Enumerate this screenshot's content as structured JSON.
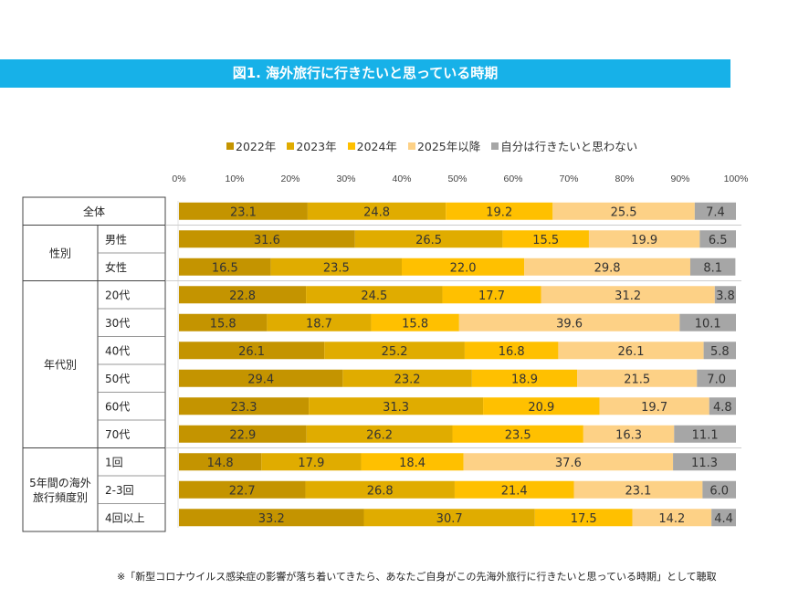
{
  "title": "図1. 海外旅行に行きたいと思っている時期",
  "footnote": "※「新型コロナウイルス感染症の影響が落ち着いてきたら、あなたご自身がこの先海外旅行に行きたいと思っている時期」として聴取",
  "chart_data": {
    "type": "bar",
    "orientation": "horizontal",
    "stacked": true,
    "xlim": [
      0,
      100
    ],
    "x_ticks": [
      "0%",
      "10%",
      "20%",
      "30%",
      "40%",
      "50%",
      "60%",
      "70%",
      "80%",
      "90%",
      "100%"
    ],
    "legend": [
      {
        "name": "2022年",
        "color": "#c49400"
      },
      {
        "name": "2023年",
        "color": "#e0ac00"
      },
      {
        "name": "2024年",
        "color": "#ffc000"
      },
      {
        "name": "2025年以降",
        "color": "#fdd186"
      },
      {
        "name": "自分は行きたいと思わない",
        "color": "#a6a6a6"
      }
    ],
    "groups": [
      {
        "label": "全体",
        "rows": [
          {
            "label": "",
            "values": [
              23.1,
              24.8,
              19.2,
              25.5,
              7.4
            ]
          }
        ]
      },
      {
        "label": "性別",
        "rows": [
          {
            "label": "男性",
            "values": [
              31.6,
              26.5,
              15.5,
              19.9,
              6.5
            ]
          },
          {
            "label": "女性",
            "values": [
              16.5,
              23.5,
              22.0,
              29.8,
              8.1
            ]
          }
        ]
      },
      {
        "label": "年代別",
        "rows": [
          {
            "label": "20代",
            "values": [
              22.8,
              24.5,
              17.7,
              31.2,
              3.8
            ]
          },
          {
            "label": "30代",
            "values": [
              15.8,
              18.7,
              15.8,
              39.6,
              10.1
            ]
          },
          {
            "label": "40代",
            "values": [
              26.1,
              25.2,
              16.8,
              26.1,
              5.8
            ]
          },
          {
            "label": "50代",
            "values": [
              29.4,
              23.2,
              18.9,
              21.5,
              7.0
            ]
          },
          {
            "label": "60代",
            "values": [
              23.3,
              31.3,
              20.9,
              19.7,
              4.8
            ]
          },
          {
            "label": "70代",
            "values": [
              22.9,
              26.2,
              23.5,
              16.3,
              11.1
            ]
          }
        ]
      },
      {
        "label": "5年間の海外\n旅行頻度別",
        "rows": [
          {
            "label": "1回",
            "values": [
              14.8,
              17.9,
              18.4,
              37.6,
              11.3
            ]
          },
          {
            "label": "2-3回",
            "values": [
              22.7,
              26.8,
              21.4,
              23.1,
              6.0
            ]
          },
          {
            "label": "4回以上",
            "values": [
              33.2,
              30.7,
              17.5,
              14.2,
              4.4
            ]
          }
        ]
      }
    ]
  }
}
